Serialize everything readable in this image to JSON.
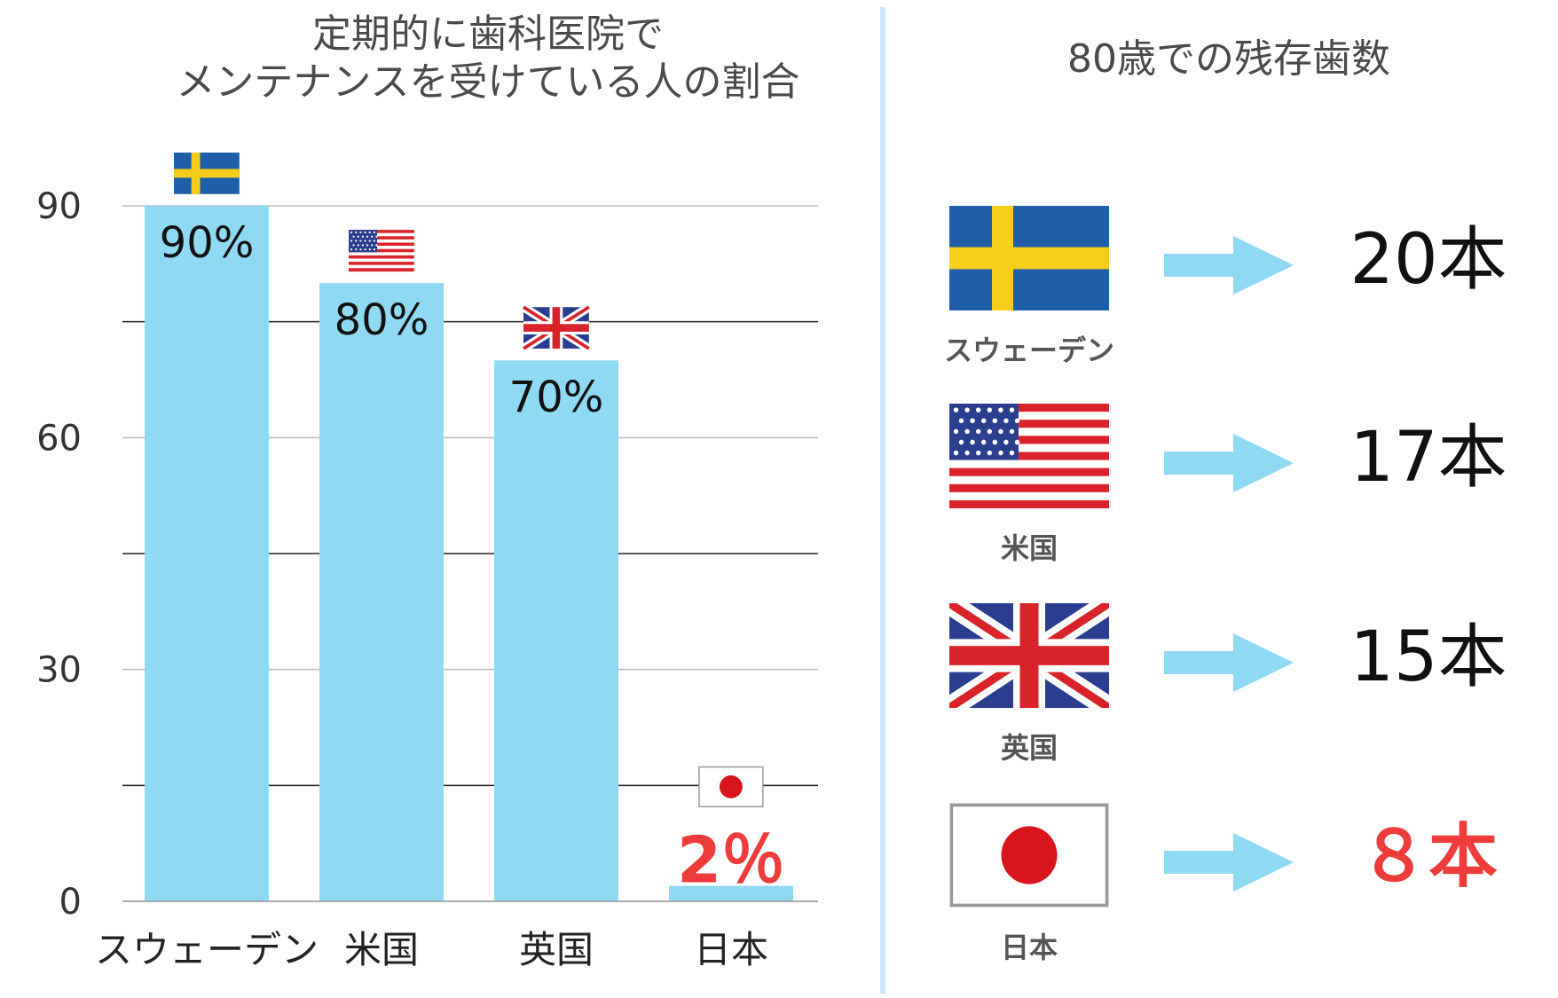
{
  "left_chart": {
    "title_line1": "定期的に歯科医院で",
    "title_line2": "メンテナンスを受けている人の割合"
  },
  "right_panel": {
    "title": "80歳での残存歯数",
    "rows": [
      {
        "country": "スウェーデン",
        "flag_icon": "sweden-flag-icon",
        "value": "20本",
        "highlight": false
      },
      {
        "country": "米国",
        "flag_icon": "usa-flag-icon",
        "value": "17本",
        "highlight": false
      },
      {
        "country": "英国",
        "flag_icon": "uk-flag-icon",
        "value": "15本",
        "highlight": false
      },
      {
        "country": "日本",
        "flag_icon": "japan-flag-icon",
        "value": "８本",
        "highlight": true
      }
    ]
  },
  "colors": {
    "bar": "#8fdaf2",
    "arrow": "#8fdaf2",
    "highlight": "#ee3b3b",
    "gridline": "#222222",
    "divider": "#cde8f4"
  },
  "chart_data": {
    "type": "bar",
    "title": "定期的に歯科医院で メンテナンスを受けている人の割合",
    "categories": [
      "スウェーデン",
      "米国",
      "英国",
      "日本"
    ],
    "values": [
      90,
      80,
      70,
      2
    ],
    "data_labels": [
      "90%",
      "80%",
      "70%",
      "2％"
    ],
    "label_highlight": [
      false,
      false,
      false,
      true
    ],
    "flag_icons": [
      "sweden-flag-icon",
      "usa-flag-icon",
      "uk-flag-icon",
      "japan-flag-icon"
    ],
    "yticks": [
      "0",
      "30",
      "60",
      "90"
    ],
    "ylim": [
      0,
      90
    ],
    "grid": true
  }
}
